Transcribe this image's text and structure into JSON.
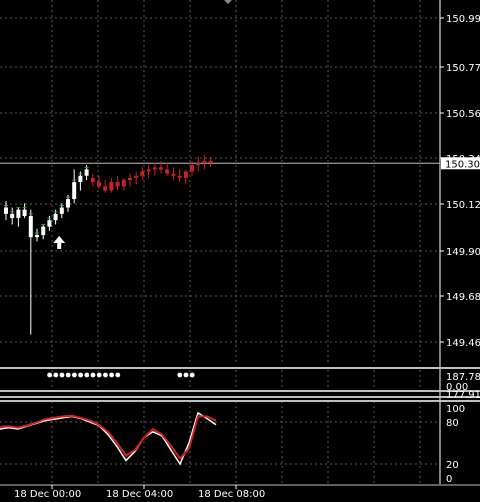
{
  "chart_data": [
    {
      "type": "candlestick",
      "title": "",
      "price_axis_ticks": [
        "150.995",
        "150.775",
        "150.560",
        "150.340",
        "150.120",
        "149.900",
        "149.685",
        "149.465"
      ],
      "current_price": "150.309",
      "ohlc": [
        [
          150.1,
          150.13,
          150.04,
          150.07
        ],
        [
          150.07,
          150.1,
          150.02,
          150.05
        ],
        [
          150.05,
          150.1,
          150.01,
          150.09
        ],
        [
          150.09,
          150.12,
          150.05,
          150.06
        ],
        [
          150.06,
          150.09,
          149.5,
          149.96
        ],
        [
          149.96,
          150.0,
          149.94,
          149.97
        ],
        [
          149.97,
          150.02,
          149.95,
          150.01
        ],
        [
          150.01,
          150.06,
          149.99,
          150.04
        ],
        [
          150.04,
          150.09,
          150.02,
          150.07
        ],
        [
          150.07,
          150.12,
          150.05,
          150.1
        ],
        [
          150.1,
          150.16,
          150.08,
          150.14
        ],
        [
          150.14,
          150.28,
          150.12,
          150.22
        ],
        [
          150.22,
          150.27,
          150.18,
          150.25
        ],
        [
          150.25,
          150.3,
          150.23,
          150.28
        ],
        [
          150.24,
          150.26,
          150.2,
          150.22
        ],
        [
          150.22,
          150.25,
          150.19,
          150.2
        ],
        [
          150.2,
          150.23,
          150.17,
          150.18
        ],
        [
          150.18,
          150.24,
          150.17,
          150.22
        ],
        [
          150.22,
          150.25,
          150.18,
          150.2
        ],
        [
          150.2,
          150.24,
          150.18,
          150.23
        ],
        [
          150.23,
          150.26,
          150.2,
          150.24
        ],
        [
          150.24,
          150.27,
          150.21,
          150.25
        ],
        [
          150.25,
          150.29,
          150.23,
          150.27
        ],
        [
          150.27,
          150.3,
          150.24,
          150.28
        ],
        [
          150.28,
          150.31,
          150.25,
          150.29
        ],
        [
          150.29,
          150.32,
          150.26,
          150.28
        ],
        [
          150.28,
          150.31,
          150.25,
          150.26
        ],
        [
          150.26,
          150.29,
          150.23,
          150.25
        ],
        [
          150.25,
          150.28,
          150.22,
          150.24
        ],
        [
          150.24,
          150.28,
          150.21,
          150.27
        ],
        [
          150.27,
          150.32,
          150.25,
          150.3
        ],
        [
          150.3,
          150.34,
          150.27,
          150.31
        ],
        [
          150.31,
          150.35,
          150.28,
          150.32
        ],
        [
          150.32,
          150.34,
          150.29,
          150.31
        ]
      ],
      "color_map": {
        "0": "green",
        "12": "green",
        "14": "red",
        "23": "red"
      },
      "markers": [
        {
          "type": "up-arrow",
          "index": 6
        }
      ]
    },
    {
      "type": "dot-indicator",
      "axis_ticks": [
        "187.780",
        "0.00"
      ],
      "dots": [
        8,
        9,
        10,
        11,
        12,
        13,
        14,
        15,
        16,
        17,
        18,
        19,
        29,
        30,
        31
      ]
    },
    {
      "type": "line",
      "axis_ticks": [
        "177.916",
        "100",
        "80",
        "20",
        "0"
      ],
      "ylim": [
        0,
        100
      ],
      "series": [
        {
          "values": [
            70,
            72,
            70,
            74,
            78,
            82,
            84,
            86,
            88,
            85,
            80,
            75,
            62,
            45,
            25,
            38,
            58,
            66,
            60,
            40,
            20,
            50,
            93,
            85,
            76
          ]
        },
        {
          "values": [
            73,
            74,
            72,
            75,
            79,
            84,
            86,
            88,
            89,
            86,
            82,
            76,
            66,
            50,
            32,
            40,
            58,
            70,
            62,
            46,
            28,
            42,
            88,
            88,
            82
          ]
        }
      ]
    }
  ],
  "time_labels": [
    "18 Dec 00:00",
    "18 Dec 04:00",
    "18 Dec 08:00"
  ],
  "colors": {
    "background": "#000000",
    "grid": "#5a5a5a",
    "separator": "#bfbfbf",
    "bull": "#ffffff",
    "bear": "#cc2222",
    "axis_text": "#ffffff",
    "price_tag_bg": "#ffffff",
    "price_tag_text": "#000000",
    "stoch_main": "#ffffff",
    "stoch_signal": "#d42020",
    "dot": "#ffffff"
  }
}
